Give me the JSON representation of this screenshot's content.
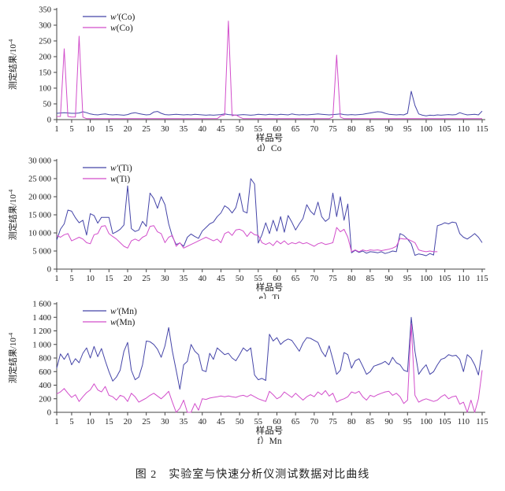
{
  "figure": {
    "caption": "图 2　实验室与快速分析仪测试数据对比曲线"
  },
  "colors": {
    "series1": "#4545a8",
    "series2": "#d24ecb",
    "axis": "#444444",
    "text": "#1a1a1a"
  },
  "chart_data": [
    {
      "type": "line",
      "subtitle": "d）Co",
      "xlabel": "样品号",
      "ylabel_base": "测定结果/10",
      "ylabel_exp": "-4",
      "ylim": [
        0,
        350
      ],
      "yticks": [
        0,
        50,
        100,
        150,
        200,
        250,
        300,
        350
      ],
      "ytick_labels": [
        "0",
        "50",
        "100",
        "150",
        "200",
        "250",
        "300",
        "350"
      ],
      "xticks": [
        1,
        5,
        10,
        15,
        20,
        25,
        30,
        35,
        40,
        45,
        50,
        55,
        60,
        65,
        70,
        75,
        80,
        85,
        90,
        95,
        100,
        105,
        110,
        115
      ],
      "x_range": [
        1,
        115
      ],
      "legend": [
        "w′(Co)",
        "w(Co)"
      ],
      "series": [
        {
          "name": "w′(Co)",
          "color_key": "series1",
          "values": [
            20,
            21,
            22,
            21,
            20,
            20,
            21,
            25,
            22,
            18,
            16,
            15,
            17,
            18,
            16,
            15,
            16,
            15,
            14,
            16,
            20,
            22,
            19,
            17,
            15,
            16,
            24,
            26,
            20,
            16,
            15,
            16,
            17,
            16,
            15,
            16,
            15,
            17,
            16,
            15,
            14,
            15,
            14,
            15,
            16,
            18,
            16,
            15,
            14,
            15,
            16,
            15,
            14,
            15,
            17,
            16,
            15,
            17,
            16,
            15,
            17,
            16,
            15,
            18,
            16,
            15,
            16,
            15,
            16,
            17,
            18,
            17,
            16,
            15,
            16,
            17,
            18,
            16,
            15,
            16,
            15,
            16,
            17,
            19,
            21,
            23,
            25,
            24,
            20,
            17,
            16,
            15,
            16,
            15,
            20,
            90,
            45,
            18,
            14,
            12,
            14,
            13,
            15,
            14,
            15,
            16,
            15,
            16,
            22,
            18,
            15,
            16,
            17,
            15,
            27
          ]
        },
        {
          "name": "w(Co)",
          "color_key": "series2",
          "values": [
            10,
            10,
            225,
            10,
            8,
            8,
            265,
            8,
            3,
            3,
            3,
            3,
            3,
            3,
            3,
            3,
            3,
            3,
            3,
            3,
            3,
            3,
            3,
            3,
            3,
            3,
            3,
            3,
            3,
            3,
            3,
            3,
            3,
            3,
            3,
            3,
            3,
            3,
            3,
            3,
            3,
            3,
            3,
            3,
            12,
            15,
            313,
            12,
            15,
            8,
            3,
            3,
            3,
            3,
            3,
            3,
            3,
            3,
            3,
            3,
            3,
            3,
            3,
            3,
            3,
            3,
            3,
            3,
            3,
            3,
            3,
            3,
            3,
            3,
            8,
            205,
            8,
            3,
            3,
            3,
            3,
            3,
            3,
            3,
            3,
            3,
            3,
            3,
            3,
            3,
            3,
            3,
            3,
            3,
            3,
            3,
            3,
            3,
            3,
            3,
            3,
            3,
            3,
            3,
            3,
            3,
            3,
            3,
            3,
            3,
            3,
            3,
            3,
            3,
            3
          ]
        }
      ]
    },
    {
      "type": "line",
      "subtitle": "e）Ti",
      "xlabel": "样品号",
      "ylabel_base": "测定结果/10",
      "ylabel_exp": "-4",
      "ylim": [
        0,
        30000
      ],
      "yticks": [
        0,
        5000,
        10000,
        15000,
        20000,
        25000,
        30000
      ],
      "ytick_labels": [
        "0",
        "5 000",
        "10 000",
        "15 000",
        "20 000",
        "25 000",
        "30 000"
      ],
      "xticks": [
        1,
        5,
        10,
        15,
        20,
        25,
        30,
        35,
        40,
        45,
        50,
        55,
        60,
        65,
        70,
        75,
        80,
        85,
        90,
        95,
        100,
        105,
        110,
        115
      ],
      "x_range": [
        1,
        115
      ],
      "legend": [
        "w′(Ti)",
        "w(Ti)"
      ],
      "series": [
        {
          "name": "w′(Ti)",
          "color_key": "series1",
          "values": [
            8000,
            11000,
            12500,
            16300,
            16000,
            14200,
            12800,
            13500,
            9400,
            15300,
            14800,
            12700,
            14300,
            14300,
            14300,
            9800,
            10300,
            11000,
            12200,
            23000,
            11200,
            10400,
            10800,
            13200,
            11800,
            21000,
            19500,
            16800,
            20000,
            17800,
            12500,
            9000,
            6800,
            7200,
            6300,
            8800,
            9700,
            9000,
            8500,
            10500,
            11500,
            12500,
            13000,
            14500,
            15500,
            17500,
            16800,
            15500,
            17000,
            21000,
            16000,
            15500,
            25000,
            23500,
            7200,
            9500,
            12800,
            9800,
            13500,
            10500,
            14500,
            10200,
            14800,
            13000,
            10800,
            12500,
            14000,
            17800,
            16000,
            15000,
            18500,
            14500,
            13200,
            14000,
            21000,
            14500,
            20000,
            13500,
            18000,
            4500,
            5200,
            4600,
            5000,
            4400,
            4800,
            4700,
            4500,
            4800,
            4300,
            4600,
            5000,
            4800,
            9800,
            9300,
            8300,
            7000,
            3800,
            4200,
            4000,
            3700,
            4300,
            3900,
            12000,
            12300,
            12800,
            12500,
            13000,
            12800,
            9800,
            8800,
            8300,
            9000,
            9800,
            8800,
            7300
          ]
        },
        {
          "name": "w(Ti)",
          "color_key": "series2",
          "values": [
            9300,
            8800,
            9500,
            9800,
            7800,
            8300,
            8800,
            8300,
            7300,
            7000,
            9500,
            9800,
            11800,
            12000,
            9800,
            9000,
            8300,
            7300,
            6300,
            5800,
            7800,
            8300,
            7800,
            8800,
            9300,
            11800,
            12000,
            10300,
            9800,
            7300,
            8800,
            9300,
            6300,
            7300,
            5800,
            6300,
            6800,
            7300,
            7800,
            8300,
            8800,
            8300,
            7800,
            8300,
            7300,
            9800,
            10300,
            9300,
            10800,
            11000,
            10500,
            9000,
            10300,
            9500,
            9300,
            7300,
            6800,
            7300,
            6500,
            7800,
            7000,
            7800,
            6800,
            7300,
            7000,
            7500,
            7000,
            7300,
            6800,
            6300,
            7000,
            7300,
            6800,
            7000,
            7300,
            11500,
            10300,
            11000,
            8800,
            4800,
            5300,
            4800,
            5300,
            5000,
            5300,
            5200,
            5300,
            5100,
            5300,
            5500,
            5800,
            6300,
            8500,
            8300,
            8300,
            7800,
            7300,
            5300,
            5000,
            4800,
            5000,
            4800,
            4800,
            null,
            null,
            null,
            null,
            null,
            null,
            null,
            null,
            null,
            null,
            null,
            null
          ]
        }
      ]
    },
    {
      "type": "line",
      "subtitle": "f）Mn",
      "xlabel": "样品号",
      "ylabel_base": "测定结果/10",
      "ylabel_exp": "-4",
      "ylim": [
        0,
        1600
      ],
      "yticks": [
        0,
        200,
        400,
        600,
        800,
        1000,
        1200,
        1400,
        1600
      ],
      "ytick_labels": [
        "0",
        "200",
        "400",
        "600",
        "800",
        "1 000",
        "1 200",
        "1 400",
        "1 600"
      ],
      "xticks": [
        1,
        5,
        10,
        15,
        20,
        25,
        30,
        35,
        40,
        45,
        50,
        55,
        60,
        65,
        70,
        75,
        80,
        85,
        90,
        95,
        100,
        105,
        110,
        115
      ],
      "x_range": [
        1,
        115
      ],
      "legend": [
        "w′(Mn)",
        "w(Mn)"
      ],
      "series": [
        {
          "name": "w′(Mn)",
          "color_key": "series1",
          "values": [
            650,
            860,
            780,
            870,
            700,
            790,
            730,
            870,
            950,
            800,
            970,
            820,
            940,
            760,
            600,
            460,
            520,
            620,
            900,
            1030,
            620,
            480,
            520,
            700,
            1050,
            1040,
            1000,
            930,
            810,
            980,
            1250,
            900,
            620,
            340,
            700,
            750,
            1000,
            900,
            850,
            620,
            600,
            870,
            780,
            950,
            900,
            850,
            870,
            800,
            760,
            850,
            950,
            900,
            950,
            550,
            480,
            500,
            470,
            1150,
            1050,
            1100,
            1000,
            1050,
            1080,
            1060,
            980,
            900,
            1020,
            1100,
            1090,
            1060,
            1030,
            900,
            820,
            980,
            780,
            560,
            620,
            880,
            850,
            650,
            760,
            790,
            680,
            560,
            600,
            680,
            700,
            720,
            750,
            700,
            810,
            730,
            700,
            620,
            600,
            1400,
            900,
            560,
            640,
            700,
            560,
            600,
            700,
            780,
            800,
            850,
            830,
            840,
            780,
            600,
            850,
            800,
            700,
            550,
            920
          ]
        },
        {
          "name": "w(Mn)",
          "color_key": "series2",
          "values": [
            270,
            300,
            350,
            280,
            220,
            260,
            160,
            230,
            290,
            330,
            420,
            330,
            300,
            380,
            250,
            230,
            180,
            250,
            230,
            160,
            280,
            230,
            150,
            180,
            210,
            250,
            280,
            240,
            200,
            250,
            310,
            150,
            0,
            60,
            180,
            0,
            0,
            130,
            30,
            200,
            190,
            210,
            220,
            230,
            240,
            230,
            240,
            230,
            220,
            240,
            250,
            230,
            260,
            230,
            200,
            180,
            160,
            310,
            260,
            200,
            230,
            300,
            260,
            220,
            280,
            230,
            180,
            230,
            260,
            230,
            300,
            260,
            320,
            240,
            280,
            150,
            180,
            200,
            230,
            300,
            280,
            310,
            230,
            180,
            250,
            230,
            260,
            280,
            300,
            310,
            250,
            280,
            230,
            130,
            180,
            1300,
            250,
            150,
            180,
            200,
            180,
            160,
            180,
            230,
            260,
            200,
            230,
            240,
            120,
            150,
            0,
            180,
            0,
            200,
            620
          ]
        }
      ]
    }
  ]
}
